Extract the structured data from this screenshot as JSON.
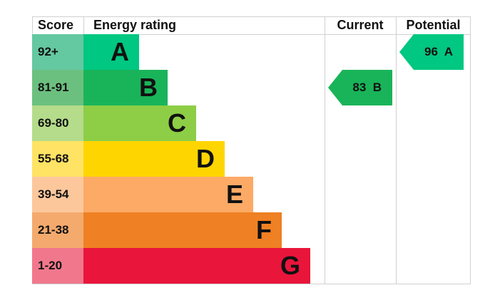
{
  "headers": {
    "score": "Score",
    "rating": "Energy rating",
    "current": "Current",
    "potential": "Potential"
  },
  "chart_data": {
    "type": "table",
    "bands": [
      {
        "score": "92+",
        "letter": "A",
        "color": "#00c781",
        "score_color": "#64c8a0"
      },
      {
        "score": "81-91",
        "letter": "B",
        "color": "#19b459",
        "score_color": "#6cc07f"
      },
      {
        "score": "69-80",
        "letter": "C",
        "color": "#8dce46",
        "score_color": "#b4dc8a"
      },
      {
        "score": "55-68",
        "letter": "D",
        "color": "#ffd500",
        "score_color": "#ffe364"
      },
      {
        "score": "39-54",
        "letter": "E",
        "color": "#fcaa65",
        "score_color": "#fdc79c"
      },
      {
        "score": "21-38",
        "letter": "F",
        "color": "#ef8023",
        "score_color": "#f4aa6d"
      },
      {
        "score": "1-20",
        "letter": "G",
        "color": "#e9153b",
        "score_color": "#f1788c"
      }
    ],
    "current": {
      "value": 83,
      "letter": "B",
      "label": "83  B",
      "color": "#19b459"
    },
    "potential": {
      "value": 96,
      "letter": "A",
      "label": "96  A",
      "color": "#00c781"
    }
  }
}
